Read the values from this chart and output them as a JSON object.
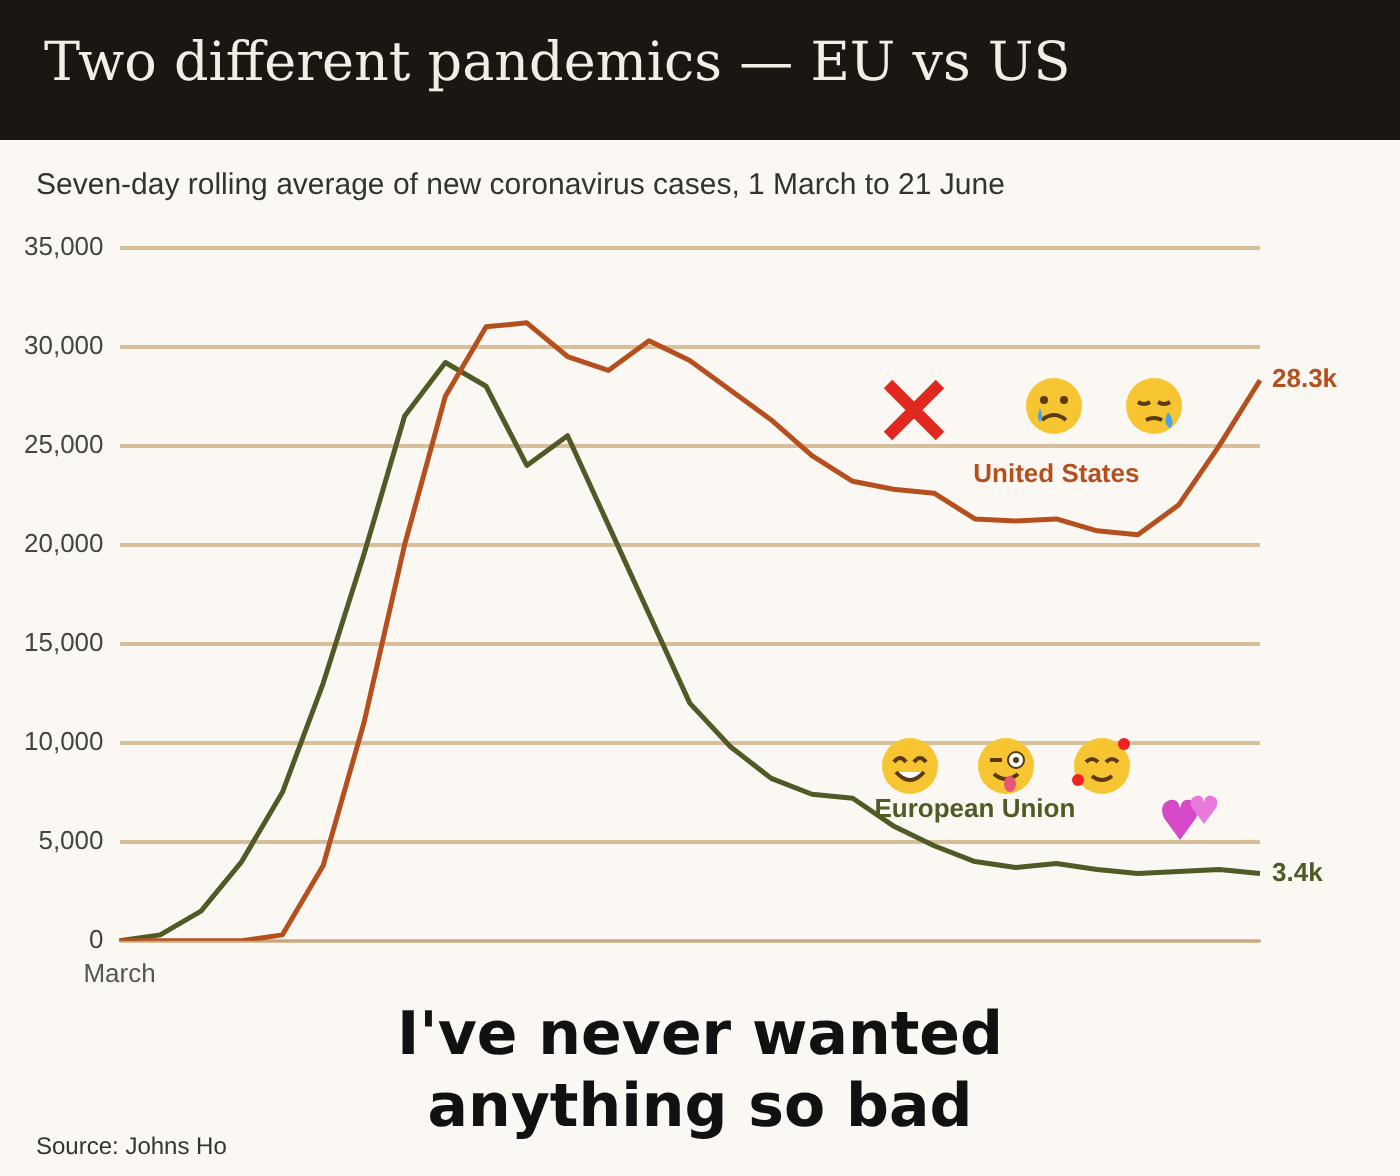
{
  "chart_data": {
    "type": "line",
    "title": "Two different pandemics — EU vs US",
    "subtitle": "Seven-day rolling average of new coronavirus cases, 1 March to 21 June",
    "categories": [
      "March",
      null,
      null,
      null,
      null,
      null,
      null,
      null,
      null,
      null,
      null,
      null,
      null,
      null,
      null,
      null,
      null,
      null,
      null,
      null,
      null,
      null,
      null,
      null,
      null,
      null,
      null,
      null,
      null
    ],
    "series": [
      {
        "name": "United States",
        "color": "#b5501e",
        "values": [
          0,
          0,
          0,
          0,
          300,
          3800,
          11000,
          20000,
          27500,
          31000,
          31200,
          29500,
          28800,
          30300,
          29300,
          27800,
          26300,
          24500,
          23200,
          22800,
          22600,
          21300,
          21200,
          21300,
          20700,
          20500,
          22000,
          25000,
          28300
        ],
        "value_labels": [
          null,
          null,
          null,
          null,
          null,
          null,
          null,
          null,
          null,
          null,
          null,
          null,
          null,
          null,
          null,
          null,
          null,
          null,
          null,
          null,
          null,
          null,
          null,
          null,
          null,
          null,
          null,
          null,
          "28.3k"
        ]
      },
      {
        "name": "European Union",
        "color": "#4f5a26",
        "values": [
          0,
          300,
          1500,
          4000,
          7500,
          13000,
          19500,
          26500,
          29200,
          28000,
          24000,
          25500,
          21000,
          16500,
          12000,
          9800,
          8200,
          7400,
          7200,
          5800,
          4800,
          4000,
          3700,
          3900,
          3600,
          3400,
          3500,
          3600,
          3400
        ],
        "value_labels": [
          null,
          null,
          null,
          null,
          null,
          null,
          null,
          null,
          null,
          null,
          null,
          null,
          null,
          null,
          null,
          null,
          null,
          null,
          null,
          null,
          null,
          null,
          null,
          null,
          null,
          null,
          null,
          null,
          "3.4k"
        ]
      }
    ],
    "ylim": [
      0,
      35000
    ],
    "yticks": [
      0,
      {
        "value": 5000,
        "label": "5,000"
      },
      {
        "value": 10000,
        "label": "10,000"
      },
      {
        "value": 15000,
        "label": "15,000"
      },
      {
        "value": 20000,
        "label": "20,000"
      },
      {
        "value": 25000,
        "label": "25,000"
      },
      {
        "value": 30000,
        "label": "30,000"
      },
      {
        "value": 35000,
        "label": "35,000"
      }
    ],
    "grid": "y",
    "annotations": [
      "I've  never wanted anything so bad",
      "Source: Johns Ho"
    ]
  }
}
